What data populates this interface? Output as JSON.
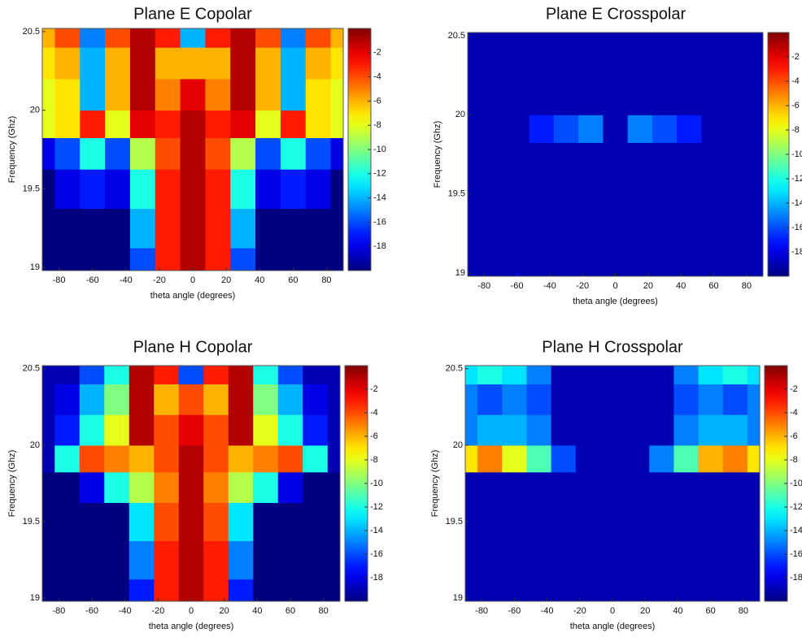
{
  "chart_data": [
    {
      "type": "heatmap",
      "title": "Plane E Copolar",
      "x_label": "theta angle (degrees)",
      "y_label": "Frequency (Ghz)",
      "colormap": "jet",
      "x": [
        -90,
        -75,
        -60,
        -45,
        -30,
        -15,
        0,
        15,
        30,
        45,
        60,
        75,
        90
      ],
      "y": [
        19,
        19.25,
        19.5,
        19.75,
        19.9,
        20.1,
        20.3,
        20.5
      ],
      "z": [
        [
          -20,
          -20,
          -20,
          -20,
          -16,
          -3,
          -1,
          -3,
          -16,
          -20,
          -20,
          -20,
          -20
        ],
        [
          -20,
          -20,
          -20,
          -20,
          -14,
          -3,
          -1,
          -3,
          -14,
          -20,
          -20,
          -20,
          -20
        ],
        [
          -20,
          -18,
          -17,
          -18,
          -12,
          -3,
          -1,
          -3,
          -12,
          -18,
          -17,
          -18,
          -20
        ],
        [
          -18,
          -16,
          -12,
          -16,
          -9,
          -4,
          -1,
          -4,
          -9,
          -16,
          -12,
          -16,
          -18
        ],
        [
          -8,
          -7,
          -3,
          -8,
          -2,
          -3,
          -1,
          -3,
          -2,
          -8,
          -3,
          -7,
          -8
        ],
        [
          -8,
          -7,
          -14,
          -6,
          -1,
          -5,
          -2,
          -5,
          -1,
          -6,
          -14,
          -7,
          -8
        ],
        [
          -7,
          -6,
          -14,
          -6,
          -1,
          -6,
          -6,
          -6,
          -1,
          -6,
          -14,
          -6,
          -7
        ],
        [
          -6,
          -4,
          -15,
          -4,
          -1,
          -3,
          -14,
          -3,
          -1,
          -4,
          -15,
          -4,
          -6
        ]
      ],
      "xlim": [
        -90,
        90
      ],
      "ylim": [
        18.98,
        20.52
      ],
      "xticks": [
        -80,
        -60,
        -40,
        -20,
        0,
        20,
        40,
        60,
        80
      ],
      "yticks": [
        19,
        19.5,
        20,
        20.5
      ],
      "clim": [
        -20,
        0
      ],
      "cticks": [
        -18,
        -16,
        -14,
        -12,
        -10,
        -8,
        -6,
        -4,
        -2
      ]
    },
    {
      "type": "heatmap",
      "title": "Plane E Crosspolar",
      "x_label": "theta angle (degrees)",
      "y_label": "Frequency (Ghz)",
      "colormap": "jet",
      "x": [
        -90,
        -75,
        -60,
        -45,
        -30,
        -15,
        0,
        15,
        30,
        45,
        60,
        75,
        90
      ],
      "y": [
        19,
        19.25,
        19.5,
        19.75,
        19.9,
        20.1,
        20.3,
        20.5
      ],
      "z": [
        [
          -19,
          -19,
          -19,
          -19,
          -19,
          -19,
          -19,
          -19,
          -19,
          -19,
          -19,
          -19,
          -19
        ],
        [
          -19,
          -19,
          -19,
          -19,
          -19,
          -19,
          -19,
          -19,
          -19,
          -19,
          -19,
          -19,
          -19
        ],
        [
          -19,
          -19,
          -19,
          -19,
          -19,
          -19,
          -19,
          -19,
          -19,
          -19,
          -19,
          -19,
          -19
        ],
        [
          -19,
          -19,
          -19,
          -19,
          -19,
          -19,
          -19,
          -19,
          -19,
          -19,
          -19,
          -19,
          -19
        ],
        [
          -19,
          -19,
          -19,
          -17,
          -16,
          -15,
          -19,
          -15,
          -16,
          -17,
          -19,
          -19,
          -19
        ],
        [
          -19,
          -19,
          -19,
          -19,
          -19,
          -19,
          -19,
          -19,
          -19,
          -19,
          -19,
          -19,
          -19
        ],
        [
          -19,
          -19,
          -19,
          -19,
          -19,
          -19,
          -19,
          -19,
          -19,
          -19,
          -19,
          -19,
          -19
        ],
        [
          -19,
          -19,
          -19,
          -19,
          -19,
          -19,
          -19,
          -19,
          -19,
          -19,
          -19,
          -19,
          -19
        ]
      ],
      "xlim": [
        -90,
        90
      ],
      "ylim": [
        18.98,
        20.52
      ],
      "xticks": [
        -80,
        -60,
        -40,
        -20,
        0,
        20,
        40,
        60,
        80
      ],
      "yticks": [
        19,
        19.5,
        20,
        20.5
      ],
      "clim": [
        -20,
        0
      ],
      "cticks": [
        -18,
        -16,
        -14,
        -12,
        -10,
        -8,
        -6,
        -4,
        -2
      ]
    },
    {
      "type": "heatmap",
      "title": "Plane H Copolar",
      "x_label": "theta angle (degrees)",
      "y_label": "Frequency (Ghz)",
      "colormap": "jet",
      "x": [
        -90,
        -75,
        -60,
        -45,
        -30,
        -15,
        0,
        15,
        30,
        45,
        60,
        75,
        90
      ],
      "y": [
        19,
        19.25,
        19.5,
        19.75,
        19.9,
        20.1,
        20.3,
        20.5
      ],
      "z": [
        [
          -20,
          -20,
          -20,
          -20,
          -17,
          -3,
          -1,
          -3,
          -17,
          -20,
          -20,
          -20,
          -20
        ],
        [
          -20,
          -20,
          -20,
          -20,
          -15,
          -3,
          -1,
          -3,
          -15,
          -20,
          -20,
          -20,
          -20
        ],
        [
          -20,
          -20,
          -20,
          -20,
          -13,
          -4,
          -1,
          -4,
          -13,
          -20,
          -20,
          -20,
          -20
        ],
        [
          -20,
          -20,
          -18,
          -12,
          -9,
          -5,
          -1,
          -5,
          -9,
          -12,
          -18,
          -20,
          -20
        ],
        [
          -19,
          -12,
          -4,
          -5,
          -6,
          -4,
          -1,
          -4,
          -6,
          -5,
          -4,
          -12,
          -19
        ],
        [
          -19,
          -17,
          -12,
          -8,
          -1,
          -4,
          -2,
          -4,
          -1,
          -8,
          -12,
          -17,
          -19
        ],
        [
          -19,
          -18,
          -14,
          -10,
          -1,
          -6,
          -4,
          -6,
          -1,
          -10,
          -14,
          -18,
          -19
        ],
        [
          -19,
          -19,
          -16,
          -12,
          -1,
          -3,
          -16,
          -3,
          -1,
          -12,
          -16,
          -19,
          -19
        ]
      ],
      "xlim": [
        -90,
        90
      ],
      "ylim": [
        18.98,
        20.52
      ],
      "xticks": [
        -80,
        -60,
        -40,
        -20,
        0,
        20,
        40,
        60,
        80
      ],
      "yticks": [
        19,
        19.5,
        20,
        20.5
      ],
      "clim": [
        -20,
        0
      ],
      "cticks": [
        -18,
        -16,
        -14,
        -12,
        -10,
        -8,
        -6,
        -4,
        -2
      ]
    },
    {
      "type": "heatmap",
      "title": "Plane H Crosspolar",
      "x_label": "theta angle (degrees)",
      "y_label": "Frequency (Ghz)",
      "colormap": "jet",
      "x": [
        -90,
        -75,
        -60,
        -45,
        -30,
        -15,
        0,
        15,
        30,
        45,
        60,
        75,
        90
      ],
      "y": [
        19,
        19.25,
        19.5,
        19.75,
        19.9,
        20.1,
        20.3,
        20.5
      ],
      "z": [
        [
          -19,
          -19,
          -19,
          -19,
          -19,
          -19,
          -19,
          -19,
          -19,
          -19,
          -19,
          -19,
          -19
        ],
        [
          -19,
          -19,
          -19,
          -19,
          -19,
          -19,
          -19,
          -19,
          -19,
          -19,
          -19,
          -19,
          -19
        ],
        [
          -19,
          -19,
          -19,
          -19,
          -19,
          -19,
          -19,
          -19,
          -19,
          -19,
          -19,
          -19,
          -19
        ],
        [
          -19,
          -19,
          -19,
          -19,
          -19,
          -19,
          -19,
          -19,
          -19,
          -19,
          -19,
          -19,
          -19
        ],
        [
          -7,
          -5,
          -8,
          -11,
          -16,
          -19,
          -19,
          -19,
          -15,
          -11,
          -6,
          -5,
          -7
        ],
        [
          -15,
          -14,
          -14,
          -15,
          -19,
          -19,
          -19,
          -19,
          -19,
          -15,
          -14,
          -14,
          -15
        ],
        [
          -15,
          -16,
          -15,
          -16,
          -19,
          -19,
          -19,
          -19,
          -19,
          -16,
          -15,
          -16,
          -15
        ],
        [
          -13,
          -12,
          -13,
          -15,
          -19,
          -19,
          -19,
          -19,
          -19,
          -15,
          -13,
          -12,
          -13
        ]
      ],
      "xlim": [
        -90,
        90
      ],
      "ylim": [
        18.98,
        20.52
      ],
      "xticks": [
        -80,
        -60,
        -40,
        -20,
        0,
        20,
        40,
        60,
        80
      ],
      "yticks": [
        19,
        19.5,
        20,
        20.5
      ],
      "clim": [
        -20,
        0
      ],
      "cticks": [
        -18,
        -16,
        -14,
        -12,
        -10,
        -8,
        -6,
        -4,
        -2
      ]
    }
  ]
}
